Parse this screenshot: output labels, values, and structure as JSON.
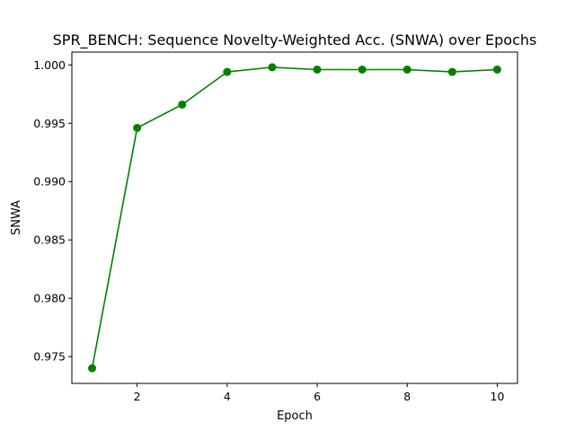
{
  "chart_data": {
    "type": "line",
    "title": "SPR_BENCH: Sequence Novelty-Weighted Acc. (SNWA) over Epochs",
    "xlabel": "Epoch",
    "ylabel": "SNWA",
    "xlim": [
      0.55,
      10.45
    ],
    "ylim": [
      0.9727,
      1.0011
    ],
    "xticks": [
      2,
      4,
      6,
      8,
      10
    ],
    "yticks": [
      0.975,
      0.98,
      0.985,
      0.99,
      0.995,
      1.0
    ],
    "grid": false,
    "series": [
      {
        "color": "#008000",
        "marker": "circle",
        "x": [
          1,
          2,
          3,
          4,
          5,
          6,
          7,
          8,
          9,
          10
        ],
        "y": [
          0.974,
          0.9946,
          0.9966,
          0.9994,
          0.9998,
          0.9996,
          0.9996,
          0.9996,
          0.9994,
          0.9996
        ]
      }
    ]
  }
}
